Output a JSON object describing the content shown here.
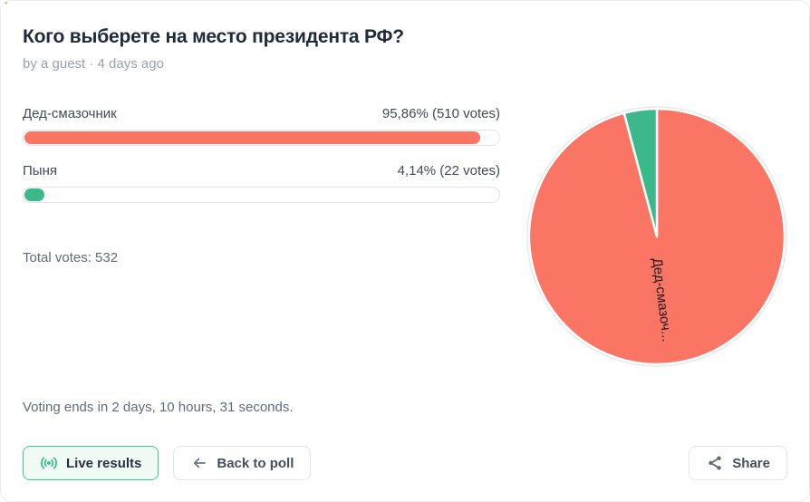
{
  "header": {
    "title": "Кого выберете на место президента РФ?",
    "byline": "by a guest · 4 days ago"
  },
  "options": [
    {
      "label": "Дед-смазочник",
      "result": "95,86% (510 votes)",
      "percent": 95.86,
      "color": "#fb7565"
    },
    {
      "label": "Пыня",
      "result": "4,14% (22 votes)",
      "percent": 4.14,
      "color": "#3cb98b"
    }
  ],
  "total_votes": "Total votes: 532",
  "chart_data": {
    "type": "pie",
    "title": "Кого выберете на место президента РФ?",
    "labels": [
      "Дед-смазочник",
      "Пыня"
    ],
    "values": [
      510,
      22
    ],
    "percents": [
      95.86,
      4.14
    ],
    "colors": [
      "#fb7565",
      "#3cb98b"
    ],
    "total": 532,
    "visible_slice_label": "Дед-смазоч...",
    "legend_position": "none",
    "start_angle_deg": 0,
    "direction": "clockwise"
  },
  "footer": {
    "voting_ends": "Voting ends in 2 days, 10 hours, 31 seconds.",
    "buttons": {
      "live": "Live results",
      "back": "Back to poll",
      "share": "Share"
    }
  },
  "accent": {
    "live_green": "#2fbe84",
    "live_border": "#3ec98d",
    "salmon": "#fb7565",
    "green": "#3cb98b",
    "corner_sliver": "#fbaf34"
  }
}
